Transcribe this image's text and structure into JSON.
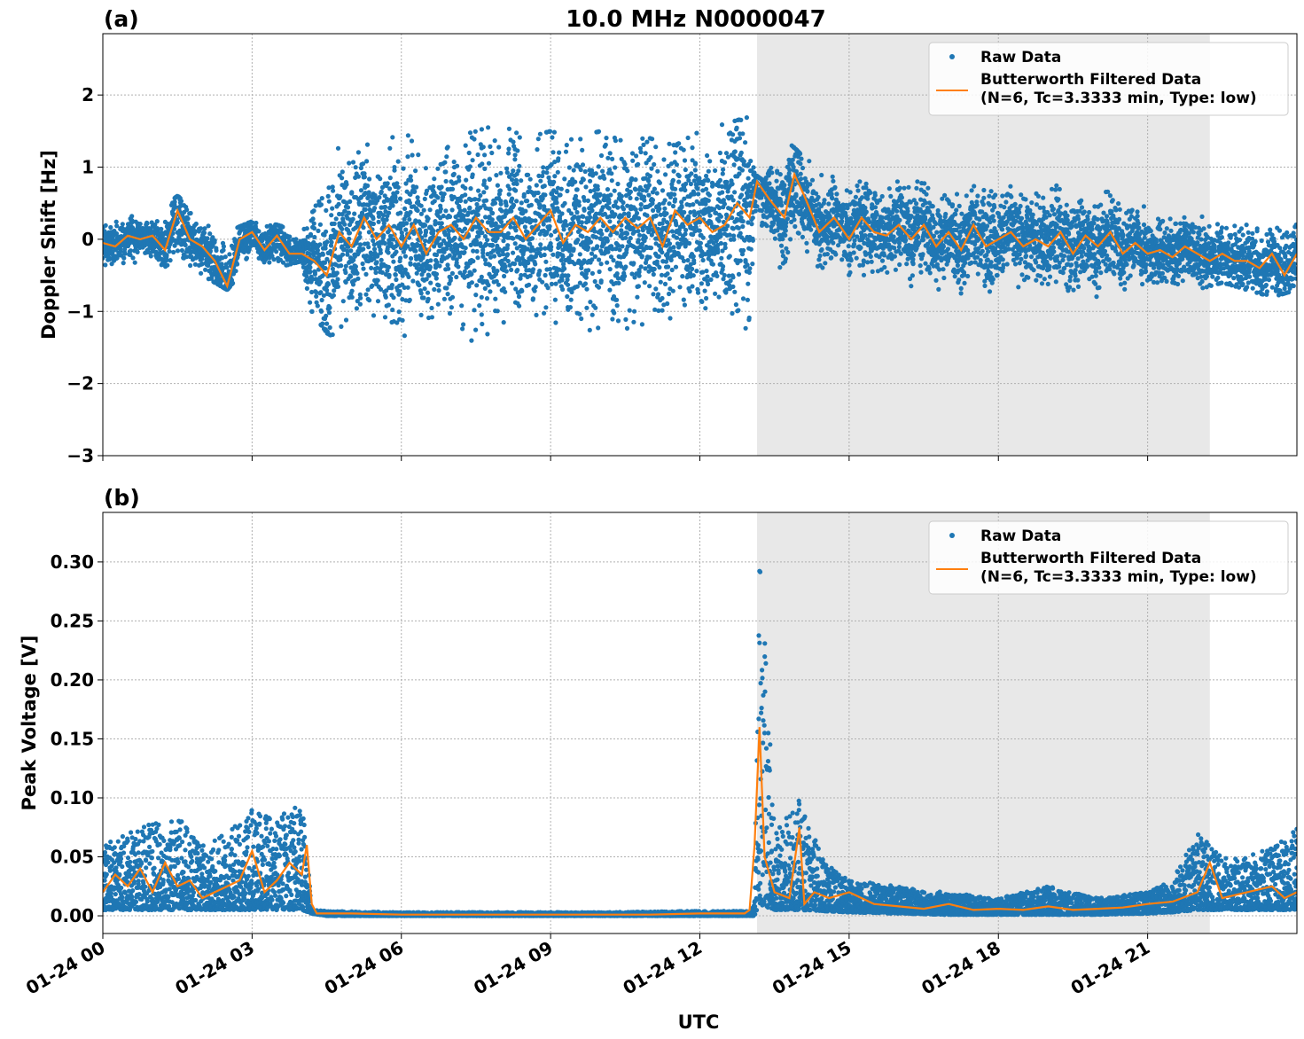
{
  "title": "10.0 MHz N0000047",
  "xlabel": "UTC",
  "x_tick_labels": [
    "01-24 00",
    "01-24 03",
    "01-24 06",
    "01-24 09",
    "01-24 12",
    "01-24 15",
    "01-24 18",
    "01-24 21"
  ],
  "legend": {
    "raw": "Raw Data",
    "filtered_line1": "Butterworth Filtered Data",
    "filtered_line2": "(N=6, Tc=3.3333 min, Type: low)"
  },
  "colors": {
    "raw": "#1f77b4",
    "filtered": "#ff7f0e",
    "shade": "#e8e8e8"
  },
  "chart_data": [
    {
      "type": "scatter",
      "panel_label": "(a)",
      "title": "10.0 MHz N0000047",
      "xlabel": "",
      "ylabel": "Doppler Shift [Hz]",
      "x_unit": "hours UTC on 01-24",
      "xlim": [
        0,
        24
      ],
      "ylim": [
        -3,
        2.85
      ],
      "y_ticks": [
        -3,
        -2,
        -1,
        0,
        1,
        2
      ],
      "y_tick_labels": [
        "−3",
        "−2",
        "−1",
        "0",
        "1",
        "2"
      ],
      "shaded_region_x": [
        13.15,
        22.25
      ],
      "grid": true,
      "legend_position": "top-right",
      "series": [
        {
          "name": "Raw Data",
          "x": [
            0,
            0.5,
            1,
            1.5,
            2,
            2.5,
            3,
            3.5,
            4,
            4.2,
            4.5,
            5,
            5.5,
            6,
            6.5,
            7,
            7.5,
            8,
            8.5,
            9,
            9.5,
            10,
            10.5,
            11,
            11.5,
            12,
            12.5,
            13,
            13.1,
            13.3,
            13.7,
            14,
            14.5,
            15,
            15.5,
            16,
            16.5,
            17,
            17.5,
            18,
            18.5,
            19,
            19.5,
            20,
            20.5,
            21,
            21.5,
            22,
            22.5,
            23,
            23.5,
            24
          ],
          "y_low": [
            -0.45,
            -0.4,
            -0.3,
            -0.45,
            -0.5,
            -0.7,
            -0.3,
            -0.4,
            -0.3,
            -1.0,
            -1.3,
            -1.5,
            -1.4,
            -1.6,
            -1.5,
            -1.4,
            -1.6,
            -1.5,
            -1.4,
            -1.5,
            -1.6,
            -1.7,
            -1.5,
            -1.4,
            -1.5,
            -1.3,
            -1.5,
            -1.6,
            0.2,
            0.0,
            -0.5,
            -0.3,
            -0.4,
            -0.6,
            -0.7,
            -0.6,
            -0.7,
            -0.8,
            -0.7,
            -0.8,
            -0.7,
            -0.8,
            -0.7,
            -0.8,
            -0.7,
            -0.6,
            -0.6,
            -0.7,
            -0.6,
            -0.7,
            -0.8,
            -0.7
          ],
          "y_high": [
            0.3,
            0.35,
            0.3,
            0.6,
            0.3,
            0.1,
            0.25,
            0.2,
            0.1,
            0.9,
            1.2,
            1.4,
            1.5,
            1.5,
            1.4,
            1.4,
            1.5,
            1.6,
            1.4,
            1.5,
            1.4,
            1.5,
            1.4,
            1.4,
            1.3,
            1.5,
            1.6,
            1.7,
            0.9,
            0.8,
            1.4,
            1.2,
            0.9,
            0.8,
            0.8,
            0.8,
            0.8,
            0.8,
            0.8,
            0.8,
            0.7,
            0.8,
            0.7,
            0.7,
            0.6,
            0.5,
            0.5,
            0.4,
            0.3,
            0.3,
            0.35,
            0.3
          ]
        },
        {
          "name": "Butterworth Filtered Data (N=6, Tc=3.3333 min, Type: low)",
          "x": [
            0,
            0.25,
            0.5,
            0.75,
            1,
            1.25,
            1.5,
            1.75,
            2,
            2.25,
            2.5,
            2.75,
            3,
            3.25,
            3.5,
            3.75,
            4,
            4.25,
            4.5,
            4.75,
            5,
            5.25,
            5.5,
            5.75,
            6,
            6.25,
            6.5,
            6.75,
            7,
            7.25,
            7.5,
            7.75,
            8,
            8.25,
            8.5,
            8.75,
            9,
            9.25,
            9.5,
            9.75,
            10,
            10.25,
            10.5,
            10.75,
            11,
            11.25,
            11.5,
            11.75,
            12,
            12.25,
            12.5,
            12.75,
            13,
            13.15,
            13.4,
            13.7,
            13.9,
            14.1,
            14.4,
            14.7,
            15,
            15.25,
            15.5,
            15.75,
            16,
            16.25,
            16.5,
            16.75,
            17,
            17.25,
            17.5,
            17.75,
            18,
            18.25,
            18.5,
            18.75,
            19,
            19.25,
            19.5,
            19.75,
            20,
            20.25,
            20.5,
            20.75,
            21,
            21.25,
            21.5,
            21.75,
            22,
            22.25,
            22.5,
            22.75,
            23,
            23.25,
            23.5,
            23.75,
            24
          ],
          "y": [
            -0.05,
            -0.1,
            0.05,
            0.0,
            0.05,
            -0.15,
            0.4,
            0.0,
            -0.1,
            -0.3,
            -0.65,
            0.0,
            0.1,
            -0.15,
            0.05,
            -0.2,
            -0.2,
            -0.3,
            -0.5,
            0.1,
            -0.1,
            0.3,
            0.0,
            0.2,
            -0.1,
            0.2,
            -0.2,
            0.1,
            0.2,
            0.0,
            0.3,
            0.1,
            0.1,
            0.3,
            0.0,
            0.2,
            0.4,
            -0.05,
            0.2,
            0.1,
            0.3,
            0.1,
            0.3,
            0.15,
            0.3,
            -0.1,
            0.4,
            0.2,
            0.3,
            0.1,
            0.2,
            0.5,
            0.3,
            0.8,
            0.55,
            0.3,
            0.9,
            0.6,
            0.1,
            0.3,
            0.0,
            0.3,
            0.1,
            0.05,
            0.2,
            0.0,
            0.2,
            -0.1,
            0.1,
            -0.15,
            0.2,
            -0.1,
            0.0,
            0.1,
            -0.1,
            0.0,
            -0.1,
            0.1,
            -0.2,
            0.05,
            -0.1,
            0.1,
            -0.2,
            -0.05,
            -0.2,
            -0.15,
            -0.25,
            -0.1,
            -0.2,
            -0.3,
            -0.2,
            -0.3,
            -0.3,
            -0.4,
            -0.2,
            -0.5,
            -0.2
          ]
        }
      ]
    },
    {
      "type": "scatter",
      "panel_label": "(b)",
      "xlabel": "UTC",
      "ylabel": "Peak Voltage [V]",
      "x_unit": "hours UTC on 01-24",
      "xlim": [
        0,
        24
      ],
      "ylim": [
        -0.015,
        0.342
      ],
      "y_ticks": [
        0.0,
        0.05,
        0.1,
        0.15,
        0.2,
        0.25,
        0.3
      ],
      "y_tick_labels": [
        "0.00",
        "0.05",
        "0.10",
        "0.15",
        "0.20",
        "0.25",
        "0.30"
      ],
      "shaded_region_x": [
        13.15,
        22.25
      ],
      "grid": true,
      "legend_position": "top-right",
      "series": [
        {
          "name": "Raw Data",
          "x": [
            0,
            0.5,
            1,
            1.5,
            2,
            2.5,
            3,
            3.5,
            4,
            4.2,
            4.5,
            6,
            8,
            10,
            12,
            12.5,
            13,
            13.1,
            13.2,
            13.5,
            14,
            14.5,
            15,
            16,
            17,
            18,
            19,
            20,
            21,
            21.5,
            22,
            22.5,
            23,
            23.5,
            24
          ],
          "y_low": [
            0.005,
            0.005,
            0.005,
            0.005,
            0.005,
            0.005,
            0.005,
            0.005,
            0.005,
            0.002,
            0.0,
            0.0,
            0.0,
            0.0,
            0.0,
            0.0,
            0.0,
            0.0,
            0.01,
            0.005,
            0.005,
            0.004,
            0.003,
            0.002,
            0.001,
            0.001,
            0.001,
            0.001,
            0.002,
            0.003,
            0.005,
            0.005,
            0.005,
            0.005,
            0.005
          ],
          "y_high": [
            0.06,
            0.07,
            0.08,
            0.085,
            0.06,
            0.07,
            0.09,
            0.08,
            0.105,
            0.005,
            0.004,
            0.003,
            0.003,
            0.003,
            0.004,
            0.004,
            0.004,
            0.01,
            0.325,
            0.07,
            0.1,
            0.045,
            0.03,
            0.025,
            0.02,
            0.015,
            0.025,
            0.015,
            0.02,
            0.03,
            0.07,
            0.05,
            0.05,
            0.06,
            0.075
          ]
        },
        {
          "name": "Butterworth Filtered Data (N=6, Tc=3.3333 min, Type: low)",
          "x": [
            0,
            0.25,
            0.5,
            0.75,
            1,
            1.25,
            1.5,
            1.75,
            2,
            2.25,
            2.5,
            2.75,
            3,
            3.25,
            3.5,
            3.75,
            4,
            4.1,
            4.2,
            4.3,
            5,
            6,
            7,
            8,
            9,
            10,
            11,
            12,
            12.5,
            12.9,
            13.0,
            13.1,
            13.2,
            13.3,
            13.5,
            13.8,
            14.0,
            14.1,
            14.3,
            14.6,
            15,
            15.5,
            16,
            16.5,
            17,
            17.5,
            18,
            18.5,
            19,
            19.5,
            20,
            20.5,
            21,
            21.5,
            22,
            22.25,
            22.5,
            23,
            23.5,
            23.75,
            24
          ],
          "y": [
            0.02,
            0.035,
            0.025,
            0.04,
            0.02,
            0.045,
            0.025,
            0.03,
            0.015,
            0.02,
            0.025,
            0.03,
            0.055,
            0.02,
            0.03,
            0.045,
            0.035,
            0.06,
            0.01,
            0.002,
            0.002,
            0.001,
            0.001,
            0.001,
            0.001,
            0.001,
            0.001,
            0.002,
            0.002,
            0.002,
            0.005,
            0.06,
            0.16,
            0.05,
            0.02,
            0.015,
            0.075,
            0.01,
            0.02,
            0.015,
            0.02,
            0.01,
            0.008,
            0.006,
            0.01,
            0.005,
            0.006,
            0.005,
            0.008,
            0.005,
            0.006,
            0.007,
            0.01,
            0.012,
            0.02,
            0.045,
            0.015,
            0.02,
            0.025,
            0.015,
            0.02
          ]
        }
      ]
    }
  ]
}
